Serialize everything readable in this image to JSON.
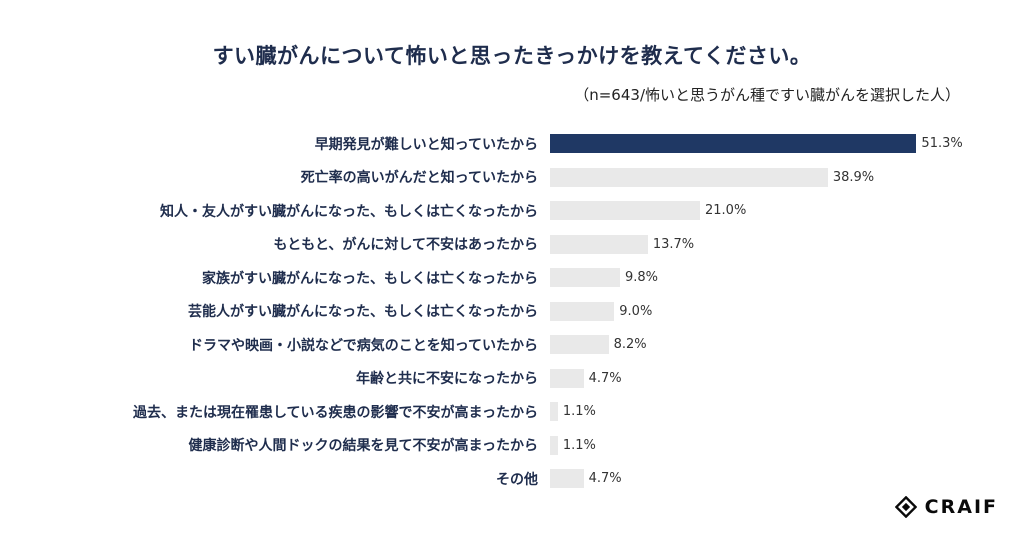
{
  "title": "すい臓がんについて怖いと思ったきっかけを教えてください。",
  "subtitle": "（n=643/怖いと思うがん種ですい臓がんを選択した人）",
  "logo": {
    "text": "CRAIF"
  },
  "chart_data": {
    "type": "bar",
    "orientation": "horizontal",
    "title": "すい臓がんについて怖いと思ったきっかけを教えてください。",
    "subtitle": "（n=643/怖いと思うがん種ですい臓がんを選択した人）",
    "categories": [
      "早期発見が難しいと知っていたから",
      "死亡率の高いがんだと知っていたから",
      "知人・友人がすい臓がんになった、もしくは亡くなったから",
      "もともと、がんに対して不安はあったから",
      "家族がすい臓がんになった、もしくは亡くなったから",
      "芸能人がすい臓がんになった、もしくは亡くなったから",
      "ドラマや映画・小説などで病気のことを知っていたから",
      "年齢と共に不安になったから",
      "過去、または現在罹患している疾患の影響で不安が高まったから",
      "健康診断や人間ドックの結果を見て不安が高まったから",
      "その他"
    ],
    "values": [
      51.3,
      38.9,
      21.0,
      13.7,
      9.8,
      9.0,
      8.2,
      4.7,
      1.1,
      1.1,
      4.7
    ],
    "value_labels": [
      "51.3%",
      "38.9%",
      "21.0%",
      "13.7%",
      "9.8%",
      "9.0%",
      "8.2%",
      "4.7%",
      "1.1%",
      "1.1%",
      "4.7%"
    ],
    "highlight_index": 0,
    "colors": {
      "highlight": "#1f3864",
      "default": "#e9e9e9"
    },
    "xlim": [
      0,
      56
    ],
    "grid": false,
    "legend": false
  }
}
